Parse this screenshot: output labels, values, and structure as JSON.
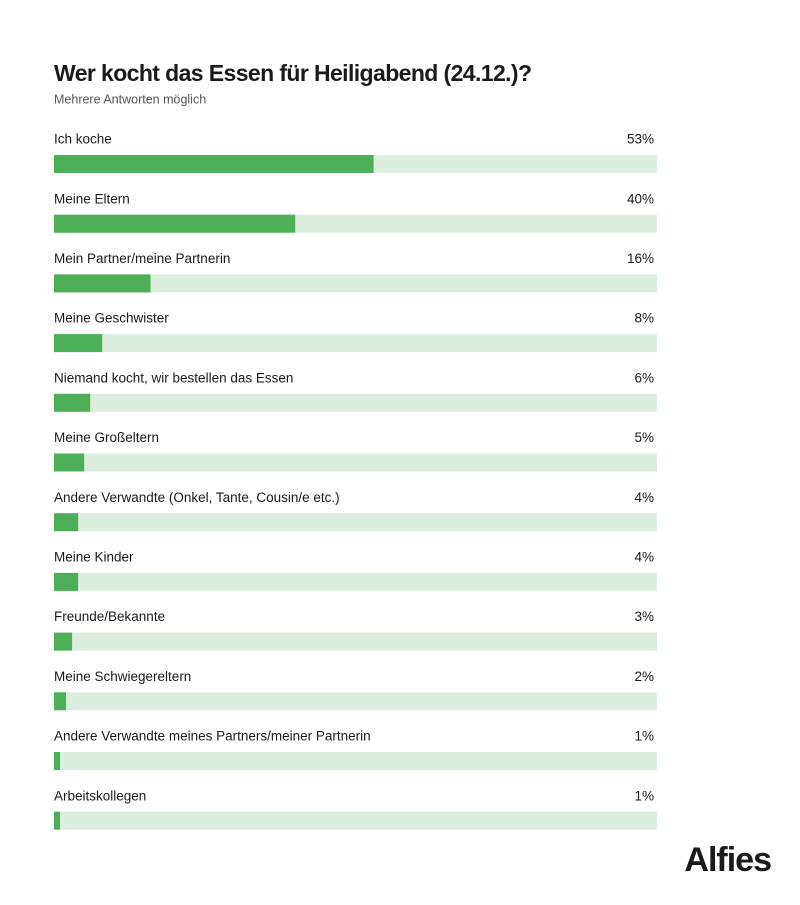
{
  "chart_data": {
    "type": "bar",
    "orientation": "horizontal",
    "title": "Wer kocht das Essen für Heiligabend (24.12.)?",
    "subtitle": "Mehrere Antworten möglich",
    "categories": [
      "Ich koche",
      "Meine Eltern",
      "Mein Partner/meine Partnerin",
      "Meine Geschwister",
      "Niemand kocht, wir bestellen das Essen",
      "Meine Großeltern",
      "Andere Verwandte (Onkel, Tante, Cousin/e etc.)",
      "Meine Kinder",
      "Freunde/Bekannte",
      "Meine Schwiegereltern",
      "Andere Verwandte meines Partners/meiner Partnerin",
      "Arbeitskollegen"
    ],
    "values": [
      53,
      40,
      16,
      8,
      6,
      5,
      4,
      4,
      3,
      2,
      1,
      1
    ],
    "value_labels": [
      "53%",
      "40%",
      "16%",
      "8%",
      "6%",
      "5%",
      "4%",
      "4%",
      "3%",
      "2%",
      "1%",
      "1%"
    ],
    "xlim": [
      0,
      100
    ],
    "color": "#4caf57",
    "track_color": "#dcefdf",
    "brand": "Alfies"
  }
}
